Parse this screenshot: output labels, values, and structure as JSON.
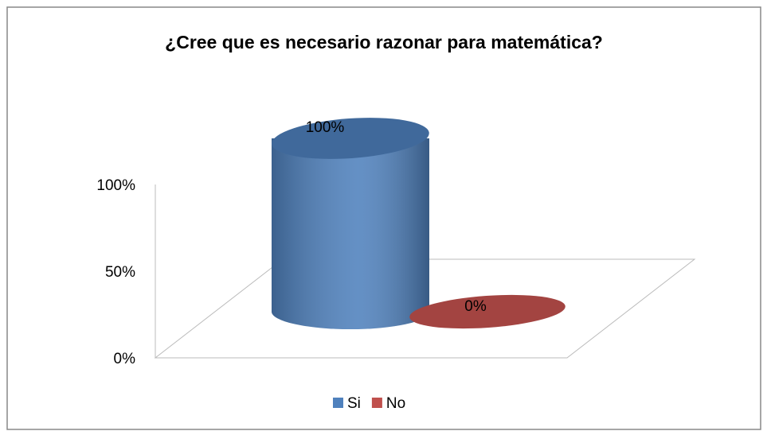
{
  "chart_data": {
    "type": "bar",
    "title": "¿Cree que es necesario razonar para matemática?",
    "categories": [
      null
    ],
    "series": [
      {
        "name": "Si",
        "color": "#4f81bd",
        "values": [
          100
        ],
        "value_labels": [
          "100%"
        ]
      },
      {
        "name": "No",
        "color": "#c0504d",
        "values": [
          0
        ],
        "value_labels": [
          "0%"
        ]
      }
    ],
    "ylim": [
      0,
      100
    ],
    "yticks": [
      {
        "value": 0,
        "label": "0%"
      },
      {
        "value": 50,
        "label": "50%"
      },
      {
        "value": 100,
        "label": "100%"
      }
    ],
    "legend": "bottom"
  }
}
